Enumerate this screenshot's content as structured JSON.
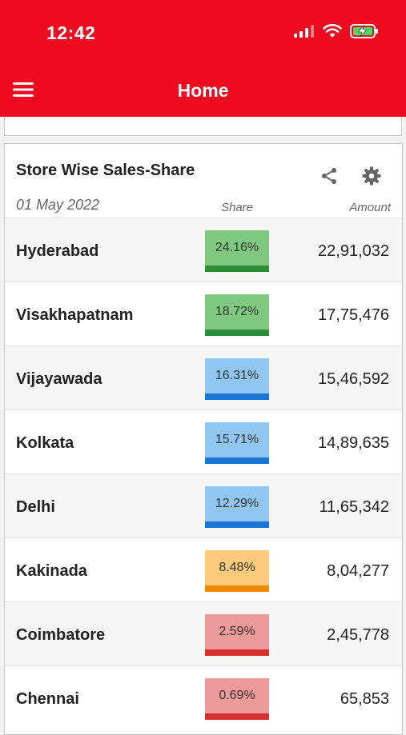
{
  "status_bar": {
    "time": "12:42"
  },
  "header": {
    "title": "Home"
  },
  "card": {
    "title": "Store Wise Sales-Share",
    "date": "01 May 2022",
    "col_share": "Share",
    "col_amount": "Amount"
  },
  "rows": [
    {
      "city": "Hyderabad",
      "share": "24.16%",
      "amount": "22,91,032",
      "fill": "#7fc87f",
      "bar": "#2e8b3a"
    },
    {
      "city": "Visakhapatnam",
      "share": "18.72%",
      "amount": "17,75,476",
      "fill": "#7fc87f",
      "bar": "#2e8b3a"
    },
    {
      "city": "Vijayawada",
      "share": "16.31%",
      "amount": "15,46,592",
      "fill": "#8fc6f2",
      "bar": "#1d76d2"
    },
    {
      "city": "Kolkata",
      "share": "15.71%",
      "amount": "14,89,635",
      "fill": "#8fc6f2",
      "bar": "#1d76d2"
    },
    {
      "city": "Delhi",
      "share": "12.29%",
      "amount": "11,65,342",
      "fill": "#8fc6f2",
      "bar": "#1d76d2"
    },
    {
      "city": "Kakinada",
      "share": "8.48%",
      "amount": "8,04,277",
      "fill": "#fdc97a",
      "bar": "#f28a00"
    },
    {
      "city": "Coimbatore",
      "share": "2.59%",
      "amount": "2,45,778",
      "fill": "#ef9a9a",
      "bar": "#d32f2f"
    },
    {
      "city": "Chennai",
      "share": "0.69%",
      "amount": "65,853",
      "fill": "#ef9a9a",
      "bar": "#d32f2f"
    }
  ],
  "colors": {
    "header": "#ee0b1f"
  }
}
